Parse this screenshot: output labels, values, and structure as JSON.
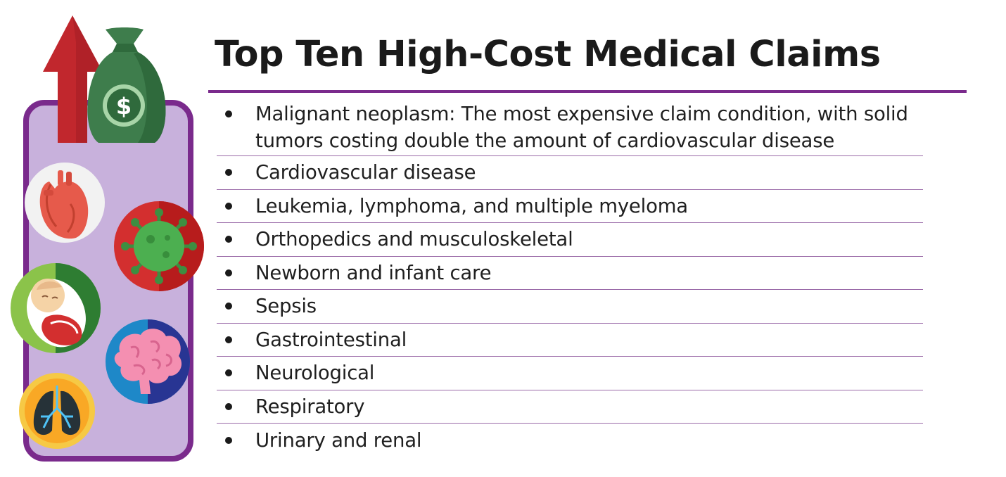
{
  "title": "Top Ten High-Cost Medical Claims",
  "claims": [
    "Malignant neoplasm: The most expensive claim condition, with solid tumors costing double the amount of cardiovascular disease",
    "Cardiovascular disease",
    "Leukemia, lymphoma, and multiple myeloma",
    "Orthopedics and musculoskeletal",
    "Newborn and infant care",
    "Sepsis",
    "Gastrointestinal",
    "Neurological",
    "Respiratory",
    "Urinary and renal"
  ],
  "illustration": {
    "icons": [
      "upward-arrow-icon",
      "money-bag-icon",
      "heart-icon",
      "virus-icon",
      "baby-icon",
      "brain-icon",
      "lungs-icon"
    ],
    "money_bag_symbol": "$"
  },
  "colors": {
    "accent": "#7a2a8c",
    "panel_fill": "#c8b1dc",
    "arrow": "#c1272d",
    "money_bag": "#3e7d4c",
    "text": "#1f1f1f"
  }
}
